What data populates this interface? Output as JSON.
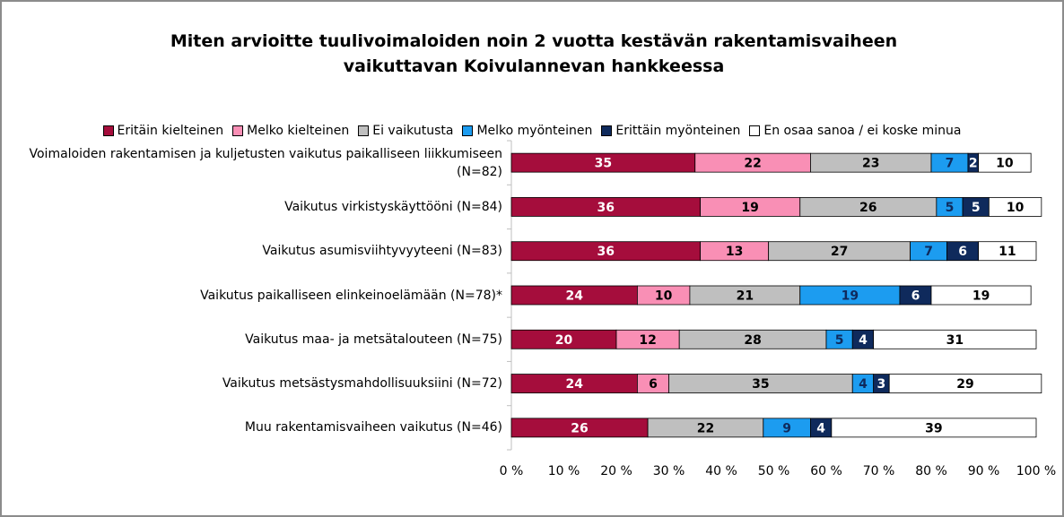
{
  "chart_data": {
    "type": "stacked_bar_horizontal",
    "title": "Miten arvioitte tuulivoimaloiden noin 2 vuotta kestävän rakentamisvaiheen vaikuttavan Koivulannevan hankkeessa",
    "categories": [
      "Voimaloiden rakentamisen ja kuljetusten vaikutus paikalliseen liikkumiseen (N=82)",
      "Vaikutus virkistyskäyttööni (N=84)",
      "Vaikutus asumisviihtyvyyteeni (N=83)",
      "Vaikutus paikalliseen elinkeinoelämään (N=78)*",
      "Vaikutus maa- ja metsätalouteen (N=75)",
      "Vaikutus metsästysmahdollisuuksiini (N=72)",
      "Muu rakentamisvaiheen vaikutus (N=46)"
    ],
    "series": [
      {
        "name": "Eritäin kielteinen",
        "color": "#a50d3c",
        "label_color": "#ffffff",
        "values": [
          35,
          36,
          36,
          24,
          20,
          24,
          26
        ]
      },
      {
        "name": "Melko kielteinen",
        "color": "#f98fb5",
        "label_color": "#000000",
        "values": [
          22,
          19,
          13,
          10,
          12,
          6,
          null
        ]
      },
      {
        "name": "Ei vaikutusta",
        "color": "#bfbfbf",
        "label_color": "#000000",
        "values": [
          23,
          26,
          27,
          21,
          28,
          35,
          22
        ]
      },
      {
        "name": "Melko myönteinen",
        "color": "#1c9cf0",
        "label_color": "#0f2a5c",
        "values": [
          7,
          5,
          7,
          19,
          5,
          4,
          9
        ]
      },
      {
        "name": "Erittäin myönteinen",
        "color": "#0f2a5c",
        "label_color": "#ffffff",
        "values": [
          2,
          5,
          6,
          6,
          4,
          3,
          4
        ]
      },
      {
        "name": "En osaa sanoa / ei koske minua",
        "color": "#ffffff",
        "label_color": "#000000",
        "values": [
          10,
          10,
          11,
          19,
          31,
          29,
          39
        ]
      }
    ],
    "xlim": [
      0,
      100
    ],
    "xticks": [
      {
        "value": 0,
        "label": "0 %"
      },
      {
        "value": 10,
        "label": "10 %"
      },
      {
        "value": 20,
        "label": "20 %"
      },
      {
        "value": 30,
        "label": "30 %"
      },
      {
        "value": 40,
        "label": "40 %"
      },
      {
        "value": 50,
        "label": "50 %"
      },
      {
        "value": 60,
        "label": "60 %"
      },
      {
        "value": 70,
        "label": "70 %"
      },
      {
        "value": 80,
        "label": "80 %"
      },
      {
        "value": 90,
        "label": "90 %"
      },
      {
        "value": 100,
        "label": "100 %"
      }
    ],
    "legend": "top"
  }
}
